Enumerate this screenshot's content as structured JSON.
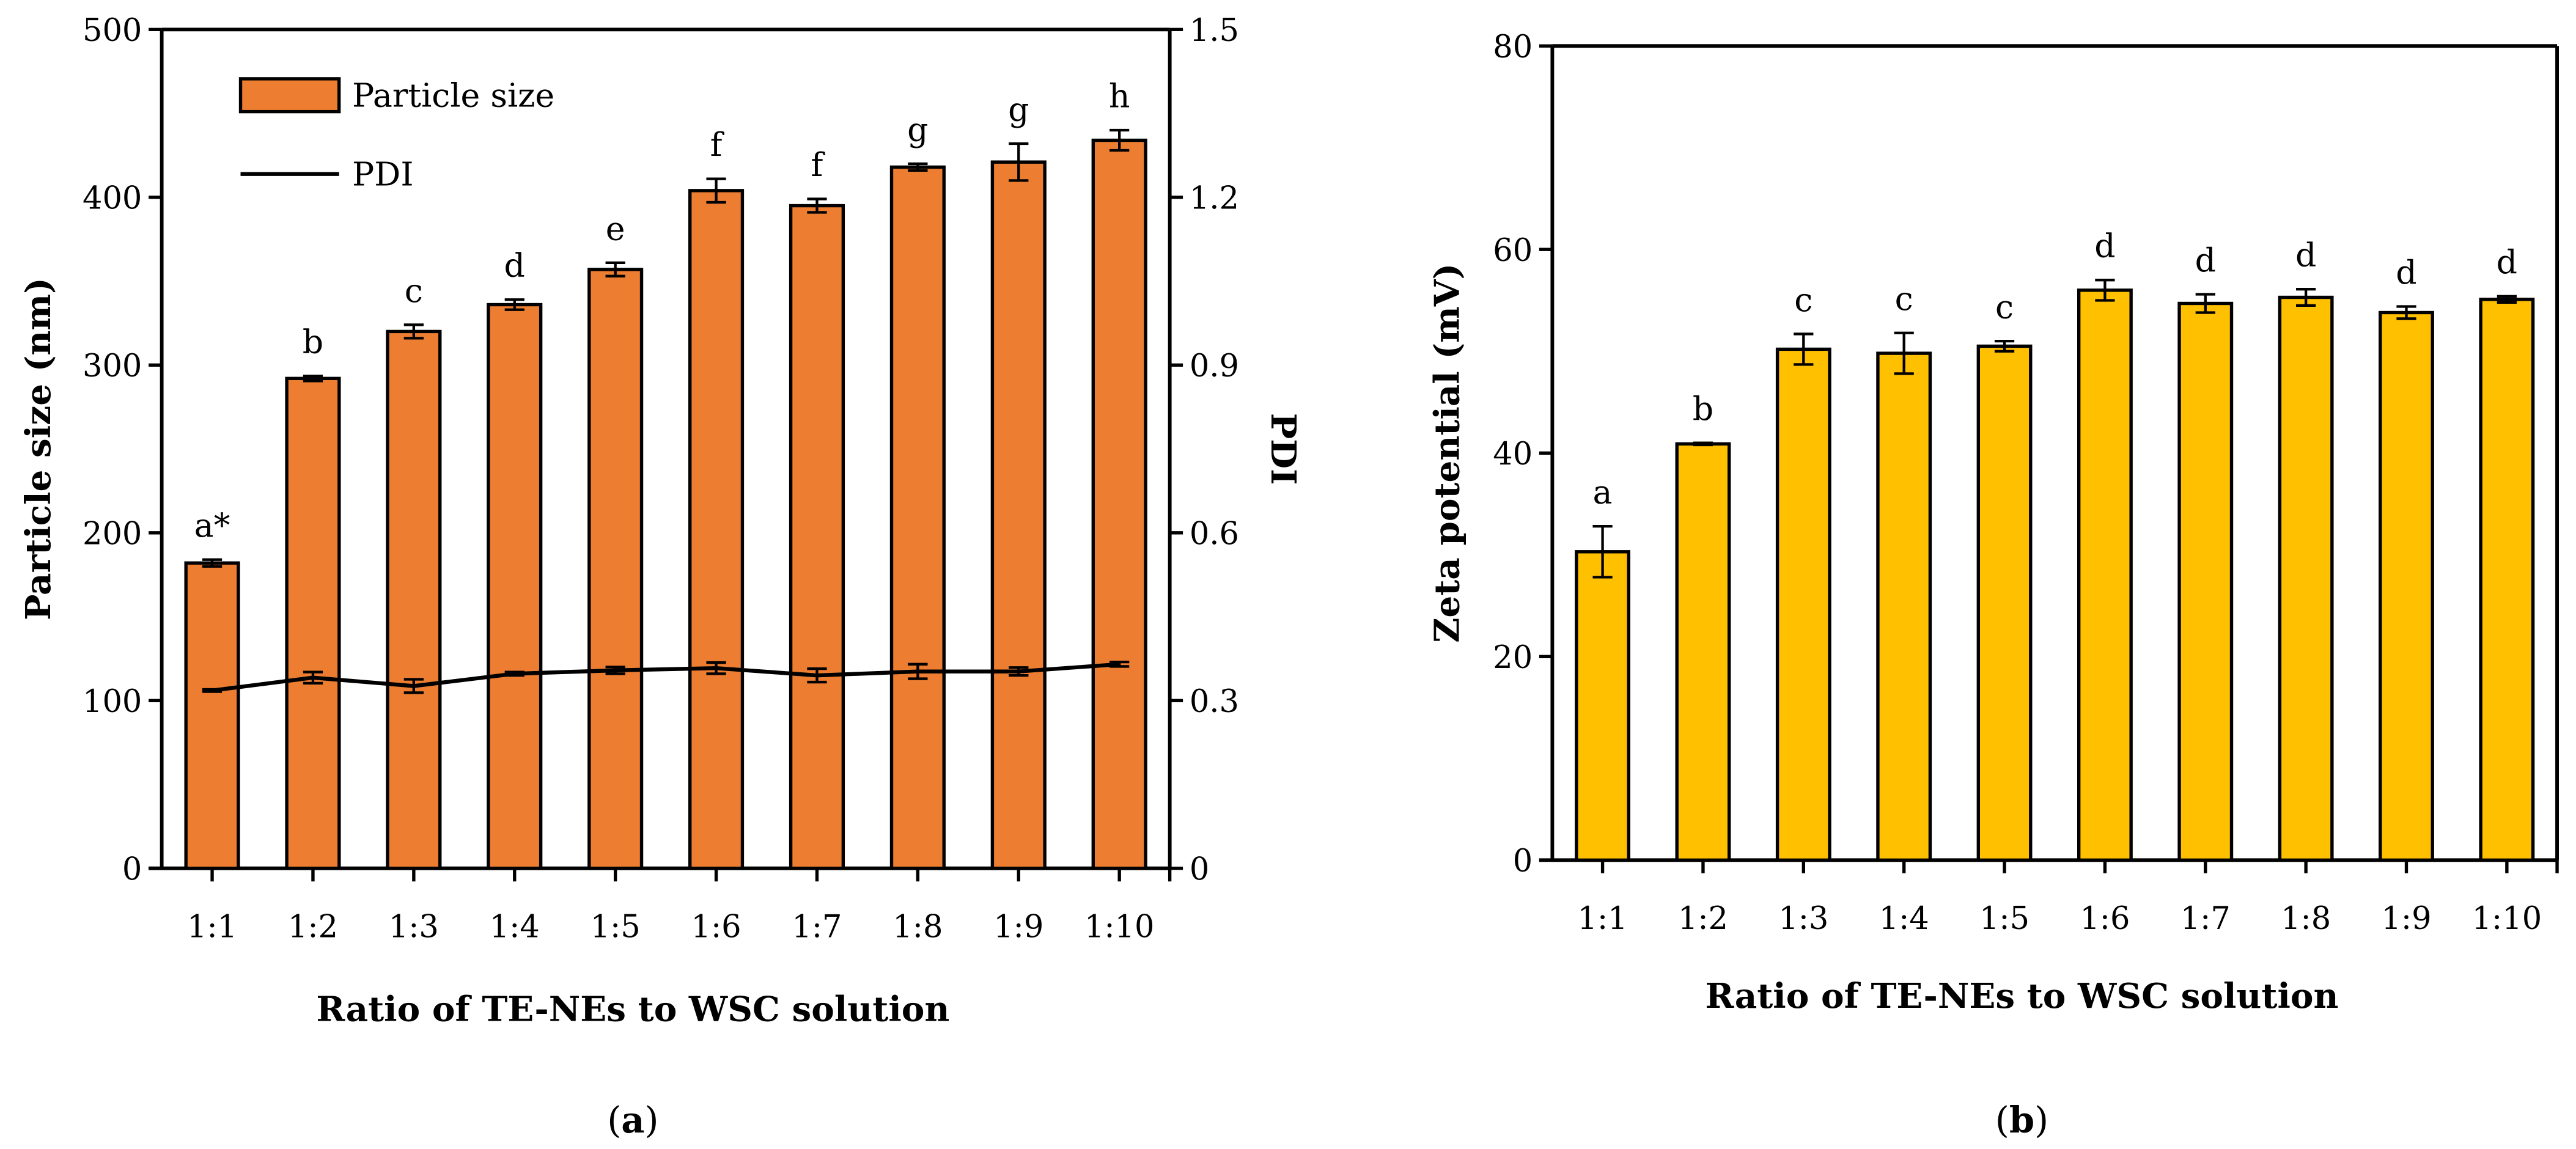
{
  "chart_data": [
    {
      "type": "bar",
      "panel_label": "a",
      "categories": [
        "1:1",
        "1:2",
        "1:3",
        "1:4",
        "1:5",
        "1:6",
        "1:7",
        "1:8",
        "1:9",
        "1:10"
      ],
      "xlabel": "Ratio of TE-NEs to WSC solution",
      "ylabel": "Particle size (nm)",
      "y2label": "PDI",
      "ylim": [
        0,
        500
      ],
      "yticks": [
        0,
        100,
        200,
        300,
        400,
        500
      ],
      "y2lim": [
        0,
        1.5
      ],
      "y2ticks": [
        "0",
        "0.3",
        "0.6",
        "0.9",
        "1.2",
        "1.5"
      ],
      "legend": {
        "position": "top-left",
        "entries": [
          "Particle size",
          "PDI"
        ]
      },
      "series": [
        {
          "name": "Particle size",
          "type": "bar",
          "axis": "left",
          "color": "#ED7D31",
          "values": [
            182,
            292,
            320,
            336,
            357,
            404,
            395,
            418,
            421,
            434
          ],
          "errors": [
            2,
            1.5,
            4,
            3,
            4,
            7,
            4,
            2,
            11,
            6
          ],
          "letters": [
            "a*",
            "b",
            "c",
            "d",
            "e",
            "f",
            "f",
            "g",
            "g",
            "h"
          ]
        },
        {
          "name": "PDI",
          "type": "line",
          "axis": "right",
          "color": "#000000",
          "values": [
            0.318,
            0.341,
            0.326,
            0.348,
            0.354,
            0.358,
            0.345,
            0.352,
            0.352,
            0.365
          ],
          "errors": [
            0.002,
            0.01,
            0.012,
            0.003,
            0.006,
            0.01,
            0.012,
            0.013,
            0.007,
            0.004
          ]
        }
      ]
    },
    {
      "type": "bar",
      "panel_label": "b",
      "categories": [
        "1:1",
        "1:2",
        "1:3",
        "1:4",
        "1:5",
        "1:6",
        "1:7",
        "1:8",
        "1:9",
        "1:10"
      ],
      "xlabel": "Ratio of TE-NEs to WSC solution",
      "ylabel": "Zeta potential (mV)",
      "ylim": [
        0,
        80
      ],
      "yticks": [
        0,
        20,
        40,
        60,
        80
      ],
      "series": [
        {
          "name": "Zeta potential",
          "type": "bar",
          "color": "#FFC000",
          "values": [
            30.3,
            40.9,
            50.2,
            49.8,
            50.5,
            56.0,
            54.7,
            55.3,
            53.8,
            55.1
          ],
          "errors": [
            2.5,
            0.1,
            1.5,
            2.0,
            0.5,
            1.0,
            0.9,
            0.8,
            0.6,
            0.3
          ],
          "letters": [
            "a",
            "b",
            "c",
            "c",
            "c",
            "d",
            "d",
            "d",
            "d",
            "d"
          ]
        }
      ]
    }
  ]
}
